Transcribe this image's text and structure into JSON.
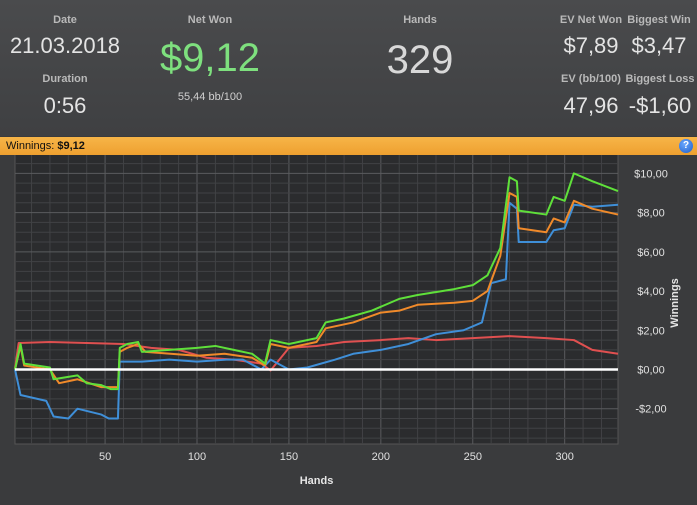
{
  "summary": {
    "date_label": "Date",
    "date_value": "21.03.2018",
    "duration_label": "Duration",
    "duration_value": "0:56",
    "net_won_label": "Net Won",
    "net_won_value": "$9,12",
    "bb_per_100": "55,44 bb/100",
    "hands_label": "Hands",
    "hands_value": "329",
    "ev_net_won_label": "EV Net Won",
    "ev_net_won_value": "$7,89",
    "biggest_win_label": "Biggest Win",
    "biggest_win_value": "$3,47",
    "ev_bb_label": "EV (bb/100)",
    "ev_bb_value": "47,96",
    "biggest_loss_label": "Biggest Loss",
    "biggest_loss_value": "-$1,60"
  },
  "winnings_bar": {
    "label": "Winnings:",
    "value": "$9,12",
    "help_glyph": "?"
  },
  "colors": {
    "net_won": "#7ee07e",
    "winnings_line": "#5fe03a",
    "ev_line": "#f08a2a",
    "blue_line": "#3f8fd8",
    "red_line": "#e05050",
    "zero_line": "#ffffff",
    "bar": "#f2aa3c"
  },
  "chart_data": {
    "type": "line",
    "xlabel": "Hands",
    "ylabel": "Winnings",
    "xlim": [
      1,
      329
    ],
    "ylim": [
      -3.8,
      11.6
    ],
    "x_ticks": [
      50,
      100,
      150,
      200,
      250,
      300
    ],
    "y_ticks": [
      {
        "value": 10,
        "label": "$10,00"
      },
      {
        "value": 8,
        "label": "$8,00"
      },
      {
        "value": 6,
        "label": "$6,00"
      },
      {
        "value": 4,
        "label": "$4,00"
      },
      {
        "value": 2,
        "label": "$2,00"
      },
      {
        "value": 0,
        "label": "$0,00"
      },
      {
        "value": -2,
        "label": "-$2,00"
      }
    ],
    "grid": true,
    "series": [
      {
        "color": "#e05050",
        "points": [
          [
            1,
            0.05
          ],
          [
            3,
            1.35
          ],
          [
            20,
            1.4
          ],
          [
            40,
            1.35
          ],
          [
            60,
            1.3
          ],
          [
            75,
            1.1
          ],
          [
            90,
            1.0
          ],
          [
            105,
            0.6
          ],
          [
            120,
            0.5
          ],
          [
            135,
            0.3
          ],
          [
            140,
            -0.05
          ],
          [
            150,
            1.1
          ],
          [
            165,
            1.2
          ],
          [
            180,
            1.4
          ],
          [
            200,
            1.5
          ],
          [
            215,
            1.6
          ],
          [
            230,
            1.5
          ],
          [
            250,
            1.6
          ],
          [
            270,
            1.7
          ],
          [
            290,
            1.6
          ],
          [
            305,
            1.5
          ],
          [
            315,
            1.0
          ],
          [
            329,
            0.8
          ]
        ]
      },
      {
        "color": "#3f8fd8",
        "points": [
          [
            1,
            0.0
          ],
          [
            4,
            -1.3
          ],
          [
            18,
            -1.6
          ],
          [
            22,
            -2.4
          ],
          [
            30,
            -2.5
          ],
          [
            35,
            -2.0
          ],
          [
            48,
            -2.3
          ],
          [
            52,
            -2.5
          ],
          [
            57,
            -2.5
          ],
          [
            58,
            0.4
          ],
          [
            70,
            0.4
          ],
          [
            85,
            0.5
          ],
          [
            100,
            0.4
          ],
          [
            116,
            0.5
          ],
          [
            125,
            0.5
          ],
          [
            135,
            0.0
          ],
          [
            140,
            0.5
          ],
          [
            150,
            0.0
          ],
          [
            160,
            0.1
          ],
          [
            175,
            0.5
          ],
          [
            185,
            0.8
          ],
          [
            200,
            1.0
          ],
          [
            215,
            1.3
          ],
          [
            230,
            1.8
          ],
          [
            245,
            2.0
          ],
          [
            255,
            2.4
          ],
          [
            260,
            4.4
          ],
          [
            268,
            4.6
          ],
          [
            270,
            8.5
          ],
          [
            274,
            8.2
          ],
          [
            275,
            6.5
          ],
          [
            290,
            6.5
          ],
          [
            294,
            7.1
          ],
          [
            300,
            7.2
          ],
          [
            305,
            8.4
          ],
          [
            315,
            8.3
          ],
          [
            329,
            8.4
          ]
        ]
      },
      {
        "color": "#f08a2a",
        "points": [
          [
            1,
            0.0
          ],
          [
            4,
            1.2
          ],
          [
            6,
            0.2
          ],
          [
            20,
            0.0
          ],
          [
            25,
            -0.7
          ],
          [
            35,
            -0.5
          ],
          [
            48,
            -0.9
          ],
          [
            57,
            -0.9
          ],
          [
            58,
            0.9
          ],
          [
            62,
            1.1
          ],
          [
            68,
            1.3
          ],
          [
            72,
            0.9
          ],
          [
            100,
            0.7
          ],
          [
            115,
            0.8
          ],
          [
            130,
            0.6
          ],
          [
            137,
            0.2
          ],
          [
            140,
            1.3
          ],
          [
            150,
            1.1
          ],
          [
            165,
            1.4
          ],
          [
            170,
            2.1
          ],
          [
            185,
            2.4
          ],
          [
            200,
            2.9
          ],
          [
            210,
            3.0
          ],
          [
            220,
            3.3
          ],
          [
            240,
            3.4
          ],
          [
            250,
            3.5
          ],
          [
            258,
            4.0
          ],
          [
            265,
            5.8
          ],
          [
            270,
            9.0
          ],
          [
            274,
            8.8
          ],
          [
            275,
            7.2
          ],
          [
            290,
            7.0
          ],
          [
            294,
            7.7
          ],
          [
            300,
            7.5
          ],
          [
            305,
            8.6
          ],
          [
            315,
            8.2
          ],
          [
            329,
            7.9
          ]
        ]
      },
      {
        "color": "#5fe03a",
        "points": [
          [
            1,
            0.0
          ],
          [
            4,
            1.3
          ],
          [
            6,
            0.3
          ],
          [
            20,
            0.1
          ],
          [
            22,
            -0.5
          ],
          [
            35,
            -0.3
          ],
          [
            40,
            -0.7
          ],
          [
            48,
            -0.8
          ],
          [
            53,
            -1.0
          ],
          [
            57,
            -1.0
          ],
          [
            58,
            1.1
          ],
          [
            62,
            1.3
          ],
          [
            68,
            1.4
          ],
          [
            70,
            0.9
          ],
          [
            85,
            1.0
          ],
          [
            100,
            1.1
          ],
          [
            110,
            1.2
          ],
          [
            120,
            1.0
          ],
          [
            130,
            0.8
          ],
          [
            137,
            0.3
          ],
          [
            140,
            1.5
          ],
          [
            150,
            1.3
          ],
          [
            165,
            1.6
          ],
          [
            170,
            2.4
          ],
          [
            180,
            2.6
          ],
          [
            195,
            3.0
          ],
          [
            210,
            3.6
          ],
          [
            220,
            3.8
          ],
          [
            240,
            4.1
          ],
          [
            250,
            4.3
          ],
          [
            258,
            4.8
          ],
          [
            265,
            6.2
          ],
          [
            270,
            9.8
          ],
          [
            274,
            9.6
          ],
          [
            275,
            8.1
          ],
          [
            290,
            7.9
          ],
          [
            294,
            8.8
          ],
          [
            300,
            8.6
          ],
          [
            305,
            10.0
          ],
          [
            315,
            9.6
          ],
          [
            329,
            9.1
          ]
        ]
      },
      {
        "color": "#ffffff",
        "points": [
          [
            1,
            0
          ],
          [
            329,
            0
          ]
        ]
      }
    ]
  }
}
